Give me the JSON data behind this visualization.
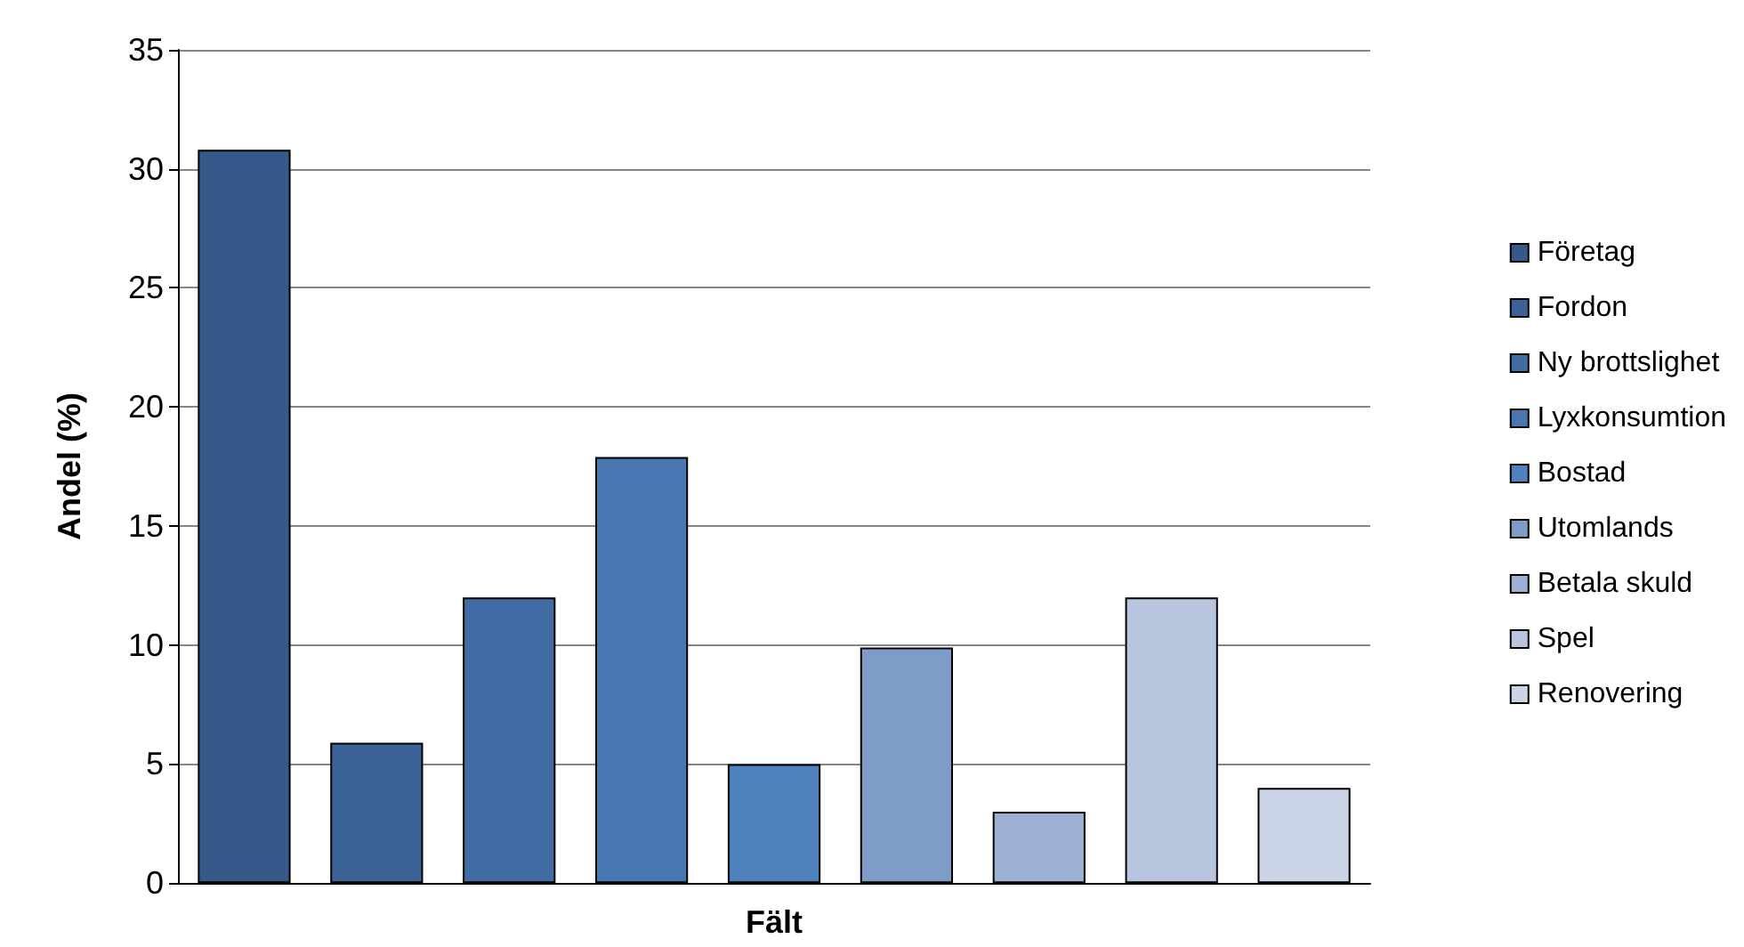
{
  "chart_data": {
    "type": "bar",
    "xlabel": "Fält",
    "ylabel": "Andel (%)",
    "categories": [
      null,
      null,
      null,
      null,
      null,
      null,
      null,
      null,
      null
    ],
    "series": [
      {
        "name": "Företag",
        "color": "#355a89",
        "values": [
          30.8,
          null,
          null,
          null,
          null,
          null,
          null,
          null,
          null
        ]
      },
      {
        "name": "Fordon",
        "color": "#3c6397",
        "values": [
          null,
          5.9,
          null,
          null,
          null,
          null,
          null,
          null,
          null
        ]
      },
      {
        "name": "Ny brottslighet",
        "color": "#426da4",
        "values": [
          null,
          null,
          12,
          null,
          null,
          null,
          null,
          null,
          null
        ]
      },
      {
        "name": "Lyxkonsumtion",
        "color": "#4877b1",
        "values": [
          null,
          null,
          null,
          17.9,
          null,
          null,
          null,
          null,
          null
        ]
      },
      {
        "name": "Bostad",
        "color": "#4f81bd",
        "values": [
          null,
          null,
          null,
          null,
          5,
          null,
          null,
          null,
          null
        ]
      },
      {
        "name": "Utomlands",
        "color": "#7f9cc9",
        "values": [
          null,
          null,
          null,
          null,
          null,
          9.9,
          null,
          null,
          null
        ]
      },
      {
        "name": "Betala skuld",
        "color": "#9eb1d4",
        "values": [
          null,
          null,
          null,
          null,
          null,
          null,
          3,
          null,
          null
        ]
      },
      {
        "name": "Spel",
        "color": "#b8c5df",
        "values": [
          null,
          null,
          null,
          null,
          null,
          null,
          null,
          12,
          null
        ]
      },
      {
        "name": "Renovering",
        "color": "#ccd5e7",
        "values": [
          null,
          null,
          null,
          null,
          null,
          null,
          null,
          null,
          4
        ]
      }
    ],
    "ylim": [
      0,
      35
    ],
    "yticks": [
      0,
      5,
      10,
      15,
      20,
      25,
      30,
      35
    ],
    "grid": "y",
    "legend": "right"
  }
}
